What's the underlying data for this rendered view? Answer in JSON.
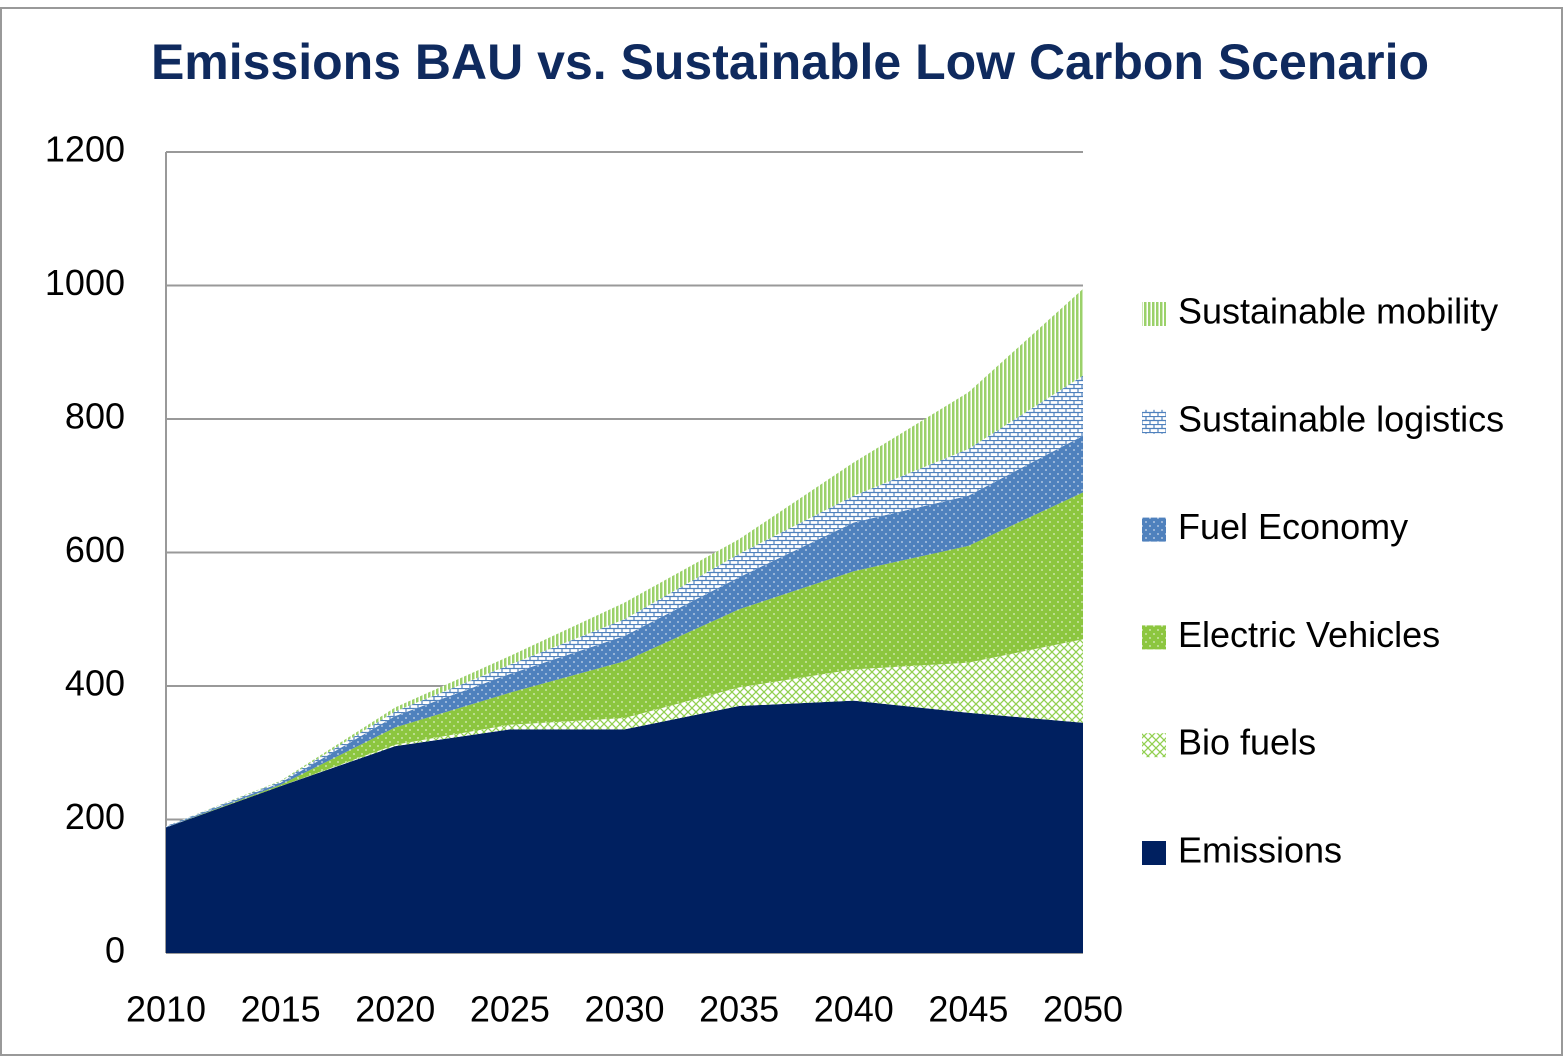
{
  "chart_data": {
    "type": "stacked_area",
    "title": "Emissions BAU vs. Sustainable Low Carbon Scenario",
    "categories": [
      "2010",
      "2015",
      "2020",
      "2025",
      "2030",
      "2035",
      "2040",
      "2045",
      "2050"
    ],
    "series": [
      {
        "name": "Emissions",
        "color": "#002060",
        "pattern": "solid",
        "values": [
          188,
          250,
          310,
          335,
          335,
          370,
          378,
          360,
          345
        ]
      },
      {
        "name": "Bio fuels",
        "color": "#92d050",
        "pattern": "crosshatch",
        "values": [
          0,
          0,
          2,
          7,
          17,
          28,
          47,
          75,
          125
        ]
      },
      {
        "name": "Electric Vehicles",
        "color": "#8cc63f",
        "pattern": "dots",
        "values": [
          0,
          2,
          26,
          48,
          85,
          117,
          147,
          175,
          220
        ]
      },
      {
        "name": "Fuel Economy",
        "color": "#4f81bd",
        "pattern": "dots",
        "values": [
          1,
          3,
          17,
          28,
          38,
          48,
          73,
          75,
          85
        ]
      },
      {
        "name": "Sustainable logistics",
        "color": "#4f81bd",
        "pattern": "bricks",
        "values": [
          1,
          2,
          7,
          14,
          25,
          35,
          40,
          70,
          90
        ]
      },
      {
        "name": "Sustainable mobility",
        "color": "#9bd16a",
        "pattern": "vertical",
        "values": [
          0,
          1,
          6,
          13,
          25,
          22,
          50,
          85,
          130
        ]
      }
    ],
    "ylim": [
      0,
      1200
    ],
    "yticks": [
      0,
      200,
      400,
      600,
      800,
      1000,
      1200
    ],
    "grid": true,
    "legend": "right"
  }
}
